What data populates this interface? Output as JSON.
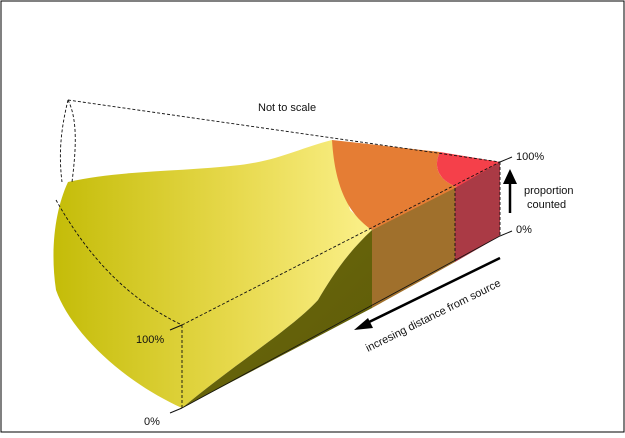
{
  "diagram": {
    "note": "Not to scale",
    "right_axis": {
      "top_label": "100%",
      "bottom_label": "0%",
      "caption_line1": "proportion",
      "caption_line2": "counted"
    },
    "left_axis": {
      "top_label": "100%",
      "bottom_label": "0%"
    },
    "distance_caption": "incresing distance from source",
    "colors": {
      "olive": "#c9c10a",
      "light_yellow": "#f7ec6a",
      "orange": "#e57d34",
      "red": "#f5404a",
      "dark_olive": "#66660a",
      "brown": "#a0702c",
      "maroon": "#aa3a45",
      "frame": "#000000"
    }
  }
}
